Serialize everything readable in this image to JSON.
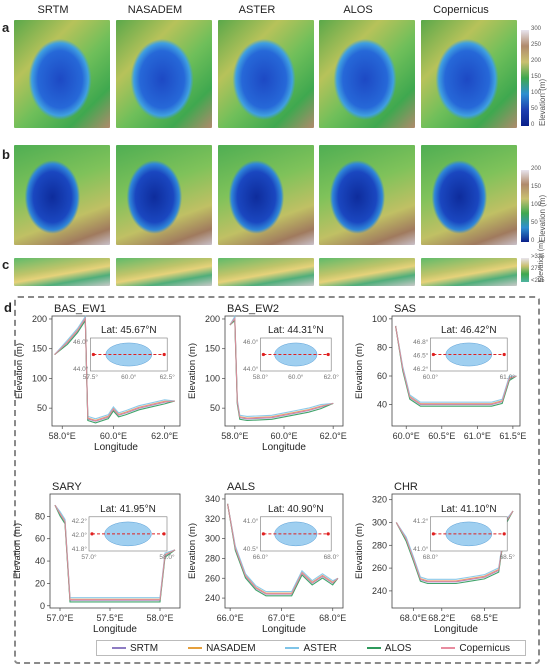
{
  "columns": [
    "SRTM",
    "NASADEM",
    "ASTER",
    "ALOS",
    "Copernicus"
  ],
  "row_labels": {
    "a": "a",
    "b": "b",
    "c": "c",
    "d": "d"
  },
  "colorbars": [
    {
      "title": "Elevation (m)",
      "ticks": [
        "300",
        "250",
        "200",
        "150",
        "100",
        "50",
        "0"
      ]
    },
    {
      "title": "Elevation (m)",
      "ticks": [
        "200",
        "150",
        "100",
        "50",
        "0"
      ]
    },
    {
      "title": "Elevation (m)",
      "ticks": [
        ">325",
        "275",
        "<225"
      ]
    }
  ],
  "chart_data": [
    {
      "type": "line",
      "title": "BAS_EW1",
      "annotation": "Lat: 45.67°N",
      "xlabel": "Longitude",
      "ylabel": "Elevation (m)",
      "xlim": [
        57.6,
        62.6
      ],
      "ylim": [
        20,
        205
      ],
      "xticks": [
        "58.0°E",
        "60.0°E",
        "62.0°E"
      ],
      "xtick_values": [
        58,
        60,
        62
      ],
      "yticks": [
        "50",
        "100",
        "150",
        "200"
      ],
      "ytick_values": [
        50,
        100,
        150,
        200
      ],
      "x": [
        57.7,
        58.2,
        58.6,
        58.9,
        59.0,
        59.3,
        59.8,
        60.0,
        60.2,
        60.5,
        61.0,
        61.5,
        62.0,
        62.4
      ],
      "y": [
        140,
        160,
        180,
        200,
        32,
        28,
        35,
        48,
        38,
        42,
        50,
        55,
        60,
        62
      ],
      "inset": {
        "xticks": [
          "57.5°",
          "60.0°",
          "62.5°"
        ],
        "yticks": [
          "46.0°",
          "44.0°"
        ]
      }
    },
    {
      "type": "line",
      "title": "BAS_EW2",
      "annotation": "Lat: 44.31°N",
      "xlabel": "Longitude",
      "ylabel": "Elevation (m)",
      "xlim": [
        57.6,
        62.4
      ],
      "ylim": [
        20,
        205
      ],
      "xticks": [
        "58.0°E",
        "60.0°E",
        "62.0°E"
      ],
      "xtick_values": [
        58,
        60,
        62
      ],
      "yticks": [
        "50",
        "100",
        "150",
        "200"
      ],
      "ytick_values": [
        50,
        100,
        150,
        200
      ],
      "x": [
        57.8,
        58.0,
        58.1,
        58.2,
        58.5,
        59.0,
        59.5,
        60.0,
        60.5,
        61.0,
        61.5,
        62.0
      ],
      "y": [
        190,
        200,
        60,
        34,
        32,
        33,
        34,
        38,
        42,
        46,
        52,
        58
      ],
      "inset": {
        "xticks": [
          "58.0°",
          "60.0°",
          "62.0°"
        ],
        "yticks": [
          "46.0°",
          "44.0°"
        ]
      }
    },
    {
      "type": "line",
      "title": "SAS",
      "annotation": "Lat: 46.42°N",
      "xlabel": "",
      "ylabel": "Elevation (m)",
      "xlim": [
        59.8,
        61.6
      ],
      "ylim": [
        25,
        102
      ],
      "xticks": [
        "60.0°E",
        "60.5°E",
        "61.0°E",
        "61.5°E"
      ],
      "xtick_values": [
        60,
        60.5,
        61,
        61.5
      ],
      "yticks": [
        "40",
        "60",
        "80",
        "100"
      ],
      "ytick_values": [
        40,
        60,
        80,
        100
      ],
      "x": [
        59.85,
        59.95,
        60.05,
        60.2,
        60.4,
        60.7,
        61.0,
        61.2,
        61.35,
        61.45,
        61.55
      ],
      "y": [
        95,
        65,
        45,
        40,
        40,
        40,
        40,
        40,
        42,
        58,
        60
      ],
      "inset": {
        "xticks": [
          "60.0°",
          "61.0°"
        ],
        "yticks": [
          "46.8°",
          "46.5°",
          "46.2°"
        ]
      }
    },
    {
      "type": "line",
      "title": "SARY",
      "annotation": "Lat: 41.95°N",
      "xlabel": "Longitude",
      "ylabel": "Elevation (m)",
      "xlim": [
        56.9,
        58.2
      ],
      "ylim": [
        -2,
        100
      ],
      "xticks": [
        "57.0°E",
        "57.5°E",
        "58.0°E"
      ],
      "xtick_values": [
        57,
        57.5,
        58
      ],
      "yticks": [
        "0",
        "20",
        "40",
        "60",
        "80"
      ],
      "ytick_values": [
        0,
        20,
        40,
        60,
        80
      ],
      "x": [
        56.95,
        57.0,
        57.05,
        57.1,
        57.3,
        57.5,
        57.7,
        57.9,
        58.0,
        58.05,
        58.15
      ],
      "y": [
        90,
        82,
        75,
        5,
        5,
        5,
        5,
        5,
        5,
        45,
        50
      ],
      "inset": {
        "xticks": [
          "57.0°",
          "58.0°"
        ],
        "yticks": [
          "42.2°",
          "42.0°",
          "41.8°"
        ]
      }
    },
    {
      "type": "line",
      "title": "AALS",
      "annotation": "Lat: 40.90°N",
      "xlabel": "Longitude",
      "ylabel": "Elevation (m)",
      "xlim": [
        65.9,
        68.2
      ],
      "ylim": [
        230,
        345
      ],
      "xticks": [
        "66.0°E",
        "67.0°E",
        "68.0°E"
      ],
      "xtick_values": [
        66,
        67,
        68
      ],
      "yticks": [
        "240",
        "260",
        "280",
        "300",
        "320",
        "340"
      ],
      "ytick_values": [
        240,
        260,
        280,
        300,
        320,
        340
      ],
      "x": [
        65.95,
        66.1,
        66.3,
        66.5,
        66.7,
        67.0,
        67.2,
        67.4,
        67.6,
        67.8,
        68.0,
        68.1
      ],
      "y": [
        335,
        290,
        262,
        250,
        244,
        244,
        244,
        265,
        255,
        262,
        255,
        260
      ],
      "inset": {
        "xticks": [
          "66.0°",
          "68.0°"
        ],
        "yticks": [
          "41.0°",
          "40.5°"
        ]
      }
    },
    {
      "type": "line",
      "title": "CHR",
      "annotation": "Lat: 41.10°N",
      "xlabel": "Longitude",
      "ylabel": "Elevation (m)",
      "xlim": [
        67.85,
        68.75
      ],
      "ylim": [
        225,
        325
      ],
      "xticks": [
        "68.0°E",
        "68.2°E",
        "68.5°E"
      ],
      "xtick_values": [
        68,
        68.2,
        68.5
      ],
      "yticks": [
        "240",
        "260",
        "280",
        "300",
        "320"
      ],
      "ytick_values": [
        240,
        260,
        280,
        300,
        320
      ],
      "x": [
        67.88,
        67.95,
        68.0,
        68.05,
        68.1,
        68.2,
        68.3,
        68.4,
        68.5,
        68.6,
        68.65,
        68.7
      ],
      "y": [
        300,
        285,
        268,
        250,
        248,
        248,
        248,
        250,
        252,
        258,
        300,
        310
      ],
      "inset": {
        "xticks": [
          "68.0°",
          "68.5°"
        ],
        "yticks": [
          "41.2°",
          "41.0°"
        ]
      }
    }
  ],
  "legend": [
    {
      "name": "SRTM",
      "color": "#8e7cc3"
    },
    {
      "name": "NASADEM",
      "color": "#e6a03c"
    },
    {
      "name": "ASTER",
      "color": "#7fc4e8"
    },
    {
      "name": "ALOS",
      "color": "#2e9a5c"
    },
    {
      "name": "Copernicus",
      "color": "#e88ca0"
    }
  ]
}
